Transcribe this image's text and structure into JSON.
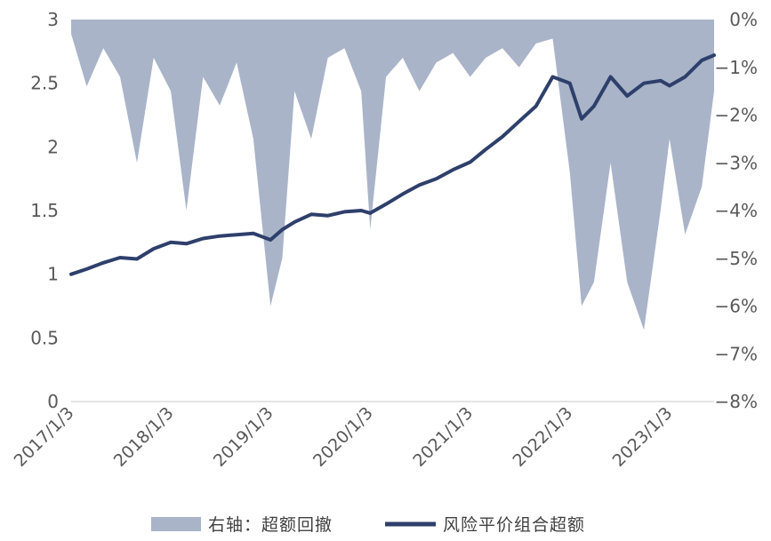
{
  "chart_data": {
    "type": "line",
    "title": "",
    "left_axis": {
      "ylim": [
        0,
        3
      ],
      "ticks": [
        "0",
        "0.5",
        "1",
        "1.5",
        "2",
        "2.5",
        "3"
      ]
    },
    "right_axis": {
      "ylim": [
        -8,
        0
      ],
      "ticks": [
        "0%",
        "−1%",
        "−2%",
        "−3%",
        "−4%",
        "−5%",
        "−6%",
        "−7%",
        "−8%"
      ]
    },
    "x_ticks": [
      "2017/1/3",
      "2018/1/3",
      "2019/1/3",
      "2020/1/3",
      "2021/1/3",
      "2022/1/3",
      "2023/1/3"
    ],
    "grid": false,
    "legend_position": "bottom",
    "colors": {
      "line": "#2e3f6b",
      "area": "#a9b4c8"
    },
    "series": [
      {
        "name": "风险平价组合超额",
        "axis": "left",
        "kind": "line",
        "x": [
          "2017/1/3",
          "2017/3/1",
          "2017/5/1",
          "2017/7/1",
          "2017/9/1",
          "2017/11/1",
          "2018/1/3",
          "2018/3/1",
          "2018/5/1",
          "2018/7/1",
          "2018/9/1",
          "2018/11/1",
          "2019/1/3",
          "2019/2/15",
          "2019/4/1",
          "2019/6/1",
          "2019/8/1",
          "2019/10/1",
          "2019/12/1",
          "2020/1/3",
          "2020/3/1",
          "2020/5/1",
          "2020/7/1",
          "2020/9/1",
          "2020/11/1",
          "2021/1/3",
          "2021/3/1",
          "2021/5/1",
          "2021/7/1",
          "2021/9/1",
          "2021/11/1",
          "2022/1/3",
          "2022/2/15",
          "2022/4/1",
          "2022/6/1",
          "2022/8/1",
          "2022/10/1",
          "2022/12/1",
          "2023/1/3",
          "2023/3/1",
          "2023/5/1",
          "2023/6/15"
        ],
        "values": [
          1.0,
          1.04,
          1.09,
          1.13,
          1.12,
          1.2,
          1.25,
          1.24,
          1.28,
          1.3,
          1.31,
          1.32,
          1.27,
          1.35,
          1.41,
          1.47,
          1.46,
          1.49,
          1.5,
          1.48,
          1.55,
          1.63,
          1.7,
          1.75,
          1.82,
          1.88,
          1.98,
          2.08,
          2.2,
          2.32,
          2.55,
          2.5,
          2.22,
          2.32,
          2.55,
          2.4,
          2.5,
          2.52,
          2.48,
          2.55,
          2.68,
          2.72
        ]
      },
      {
        "name": "右轴：超额回撤",
        "axis": "right",
        "kind": "area",
        "x": [
          "2017/1/3",
          "2017/3/1",
          "2017/5/1",
          "2017/7/1",
          "2017/9/1",
          "2017/11/1",
          "2018/1/3",
          "2018/3/1",
          "2018/5/1",
          "2018/7/1",
          "2018/9/1",
          "2018/11/1",
          "2019/1/3",
          "2019/2/15",
          "2019/4/1",
          "2019/6/1",
          "2019/8/1",
          "2019/10/1",
          "2019/12/1",
          "2020/1/3",
          "2020/3/1",
          "2020/5/1",
          "2020/7/1",
          "2020/9/1",
          "2020/11/1",
          "2021/1/3",
          "2021/3/1",
          "2021/5/1",
          "2021/7/1",
          "2021/9/1",
          "2021/11/1",
          "2022/1/3",
          "2022/2/15",
          "2022/4/1",
          "2022/6/1",
          "2022/8/1",
          "2022/10/1",
          "2022/12/1",
          "2023/1/3",
          "2023/3/1",
          "2023/5/1",
          "2023/6/15"
        ],
        "values": [
          -0.3,
          -1.4,
          -0.6,
          -1.2,
          -3.0,
          -0.8,
          -1.5,
          -4.0,
          -1.2,
          -1.8,
          -0.9,
          -2.5,
          -6.0,
          -5.0,
          -1.5,
          -2.5,
          -0.8,
          -0.6,
          -1.5,
          -4.4,
          -1.2,
          -0.8,
          -1.5,
          -0.9,
          -0.7,
          -1.2,
          -0.8,
          -0.6,
          -1.0,
          -0.5,
          -0.4,
          -3.2,
          -6.0,
          -5.5,
          -3.0,
          -5.5,
          -6.5,
          -4.0,
          -2.5,
          -4.5,
          -3.5,
          -1.5
        ]
      }
    ]
  },
  "legend": {
    "area_label": "右轴：超额回撤",
    "line_label": "风险平价组合超额"
  }
}
